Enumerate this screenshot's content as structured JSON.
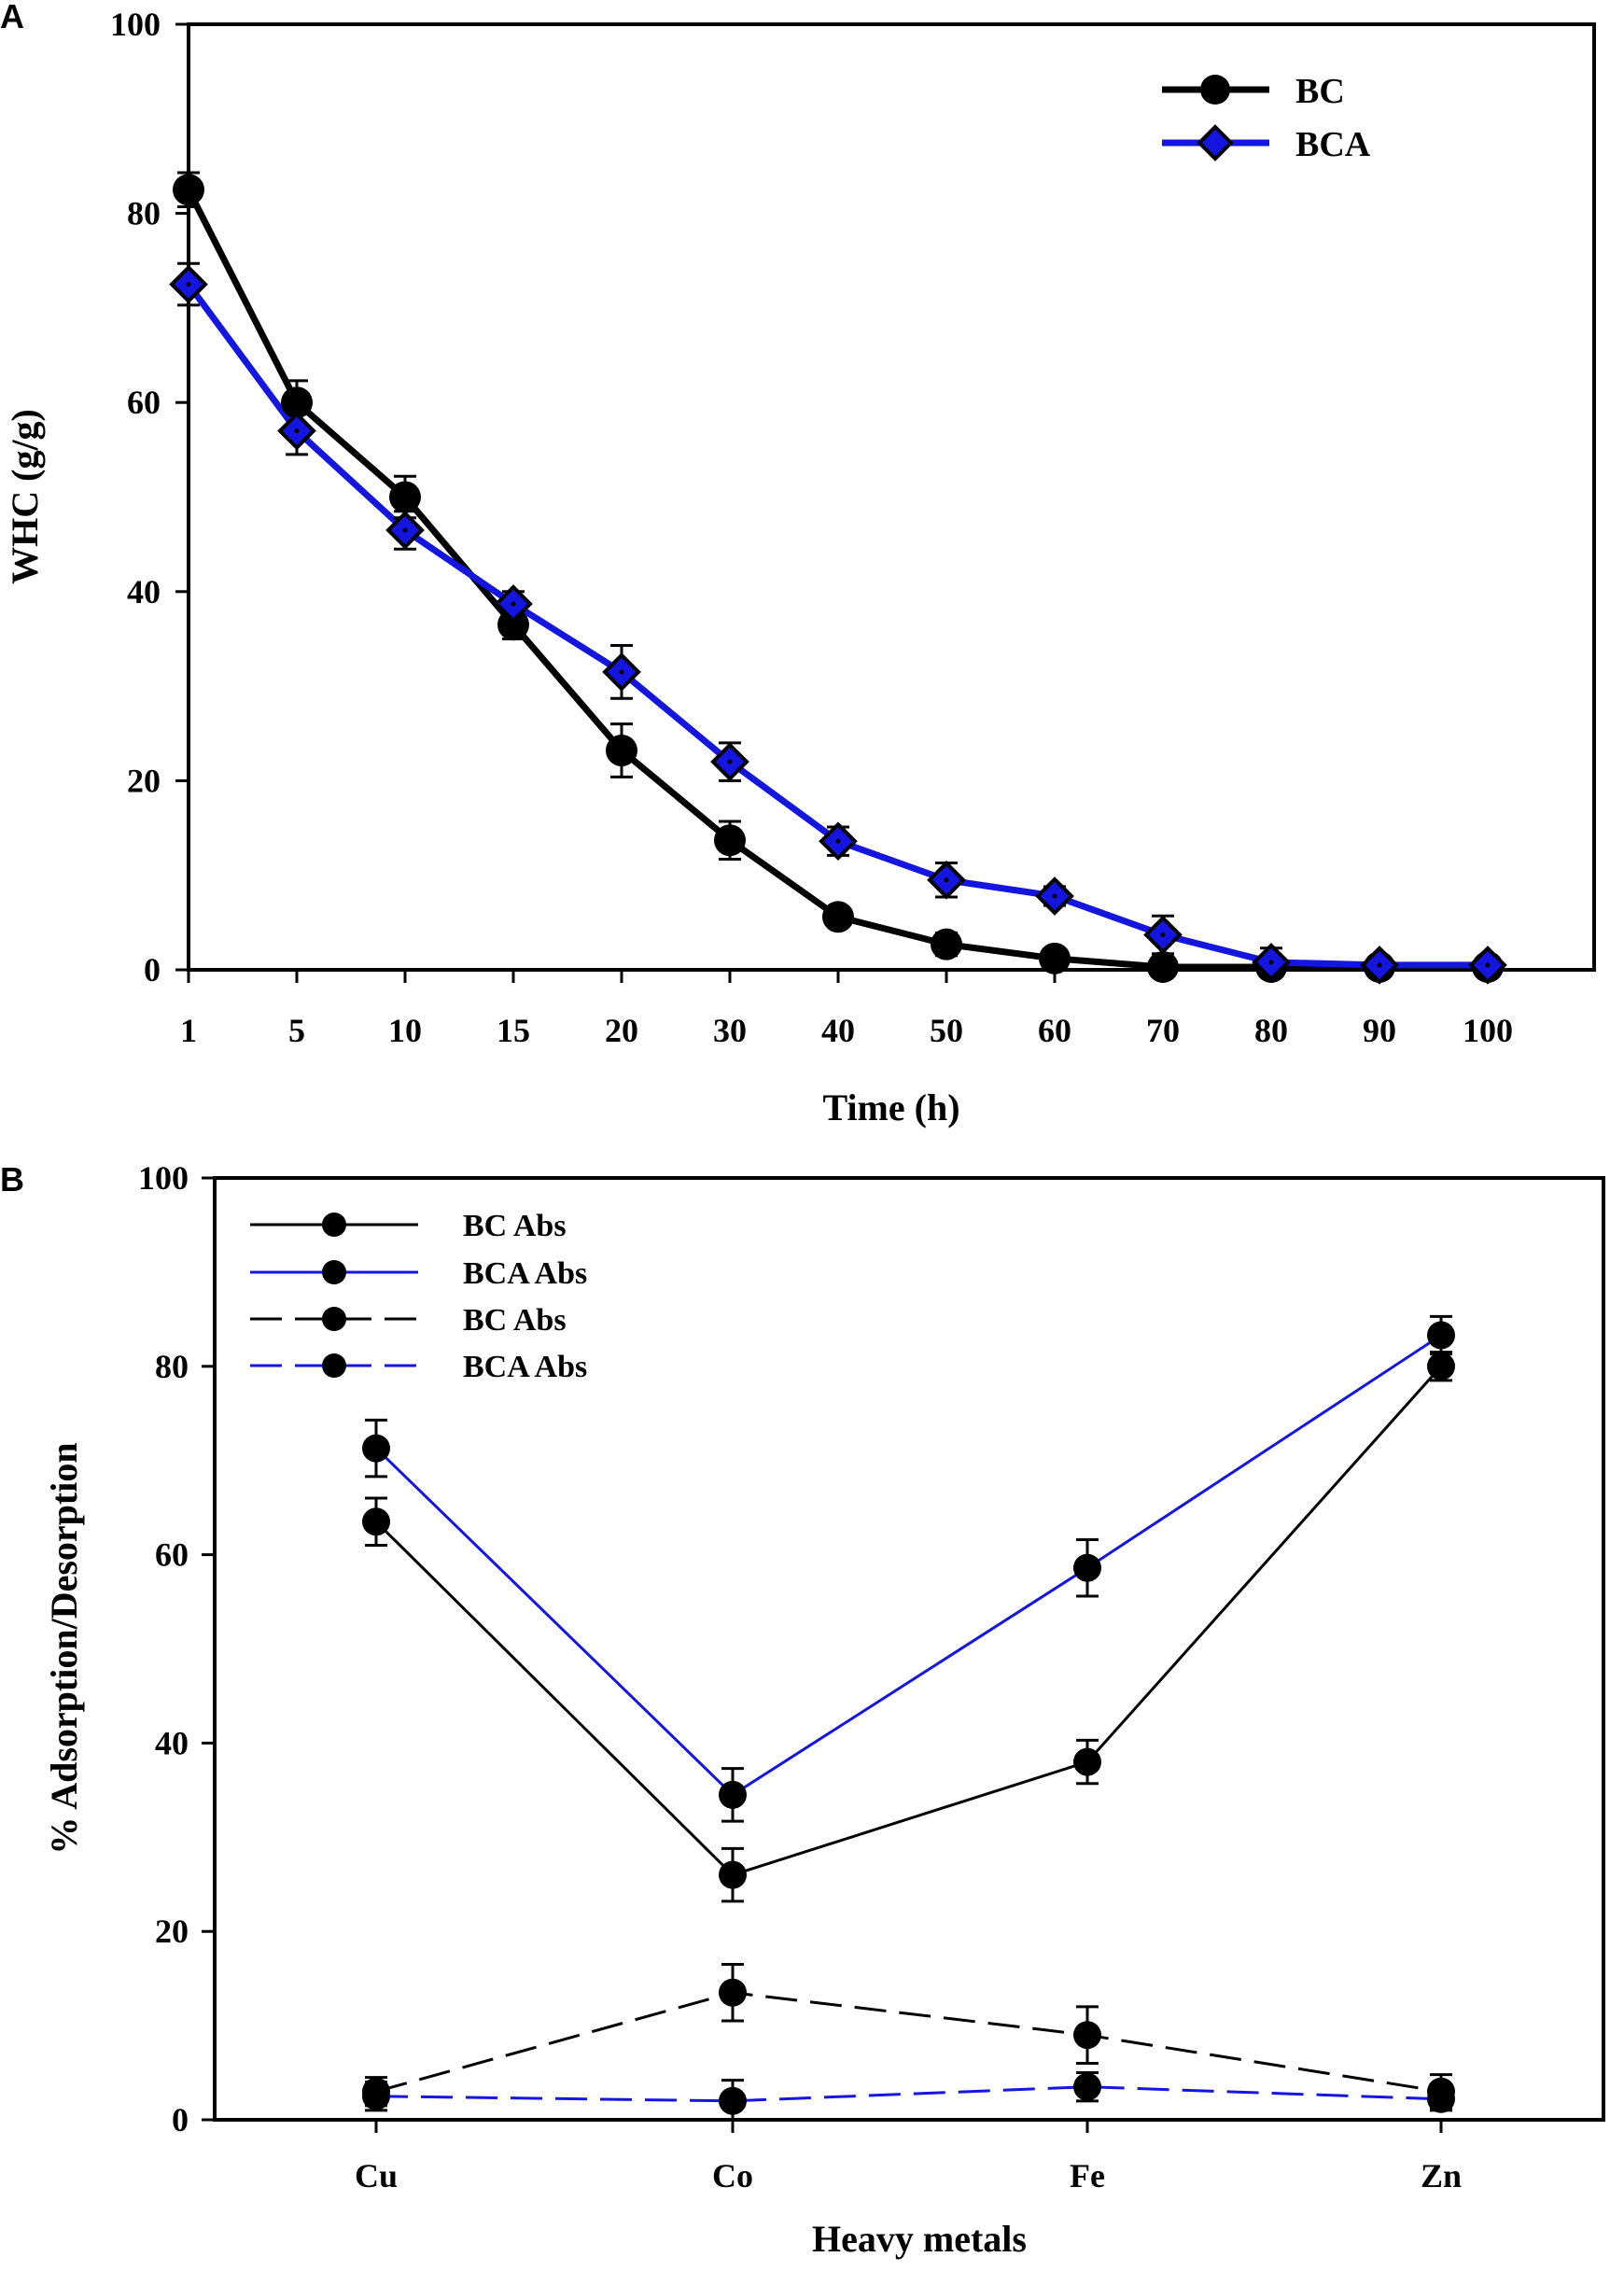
{
  "chart_data": [
    {
      "panel": "A",
      "type": "line",
      "xlabel": "Time (h)",
      "ylabel": "WHC (g/g)",
      "categories": [
        "1",
        "5",
        "10",
        "15",
        "20",
        "30",
        "40",
        "50",
        "60",
        "70",
        "80",
        "90",
        "100"
      ],
      "ylim": [
        0,
        100
      ],
      "yticks": [
        "0",
        "20",
        "40",
        "60",
        "80",
        "100"
      ],
      "series": [
        {
          "name": "BC",
          "color": "#000000",
          "marker": "circle",
          "values": [
            82.5,
            60,
            50,
            36.5,
            23.2,
            13.7,
            5.6,
            2.7,
            1.2,
            0.3,
            0.3,
            0.3,
            0.3
          ],
          "errors": [
            1.8,
            2.3,
            2.2,
            1.5,
            2.8,
            2.0,
            1.0,
            1.2,
            0.8,
            0.3,
            0.3,
            0.3,
            0.3
          ]
        },
        {
          "name": "BCA",
          "color": "#1515e0",
          "marker": "diamond",
          "values": [
            72.5,
            57,
            46.5,
            38.7,
            31.5,
            22,
            13.6,
            9.5,
            7.8,
            3.7,
            0.8,
            0.5,
            0.5
          ],
          "errors": [
            2.2,
            2.5,
            2.0,
            1.3,
            2.8,
            2.0,
            1.5,
            1.8,
            1.0,
            2.0,
            1.5,
            0.5,
            0.5
          ]
        }
      ]
    },
    {
      "panel": "B",
      "type": "line",
      "xlabel": "Heavy metals",
      "ylabel": "% Adsorption/Desorption",
      "categories": [
        "Cu",
        "Co",
        "Fe",
        "Zn"
      ],
      "ylim": [
        0,
        100
      ],
      "yticks": [
        "0",
        "20",
        "40",
        "60",
        "80",
        "100"
      ],
      "series": [
        {
          "name": "BC Abs",
          "color": "#000000",
          "dash": false,
          "values": [
            63.5,
            26,
            38,
            80
          ],
          "errors": [
            2.5,
            2.8,
            2.3,
            1.5
          ]
        },
        {
          "name": "BCA Abs",
          "color": "#1515e0",
          "dash": false,
          "values": [
            71.3,
            34.5,
            58.6,
            83.3
          ],
          "errors": [
            3.0,
            2.8,
            3.0,
            2.0
          ]
        },
        {
          "name": "BC Abs",
          "color": "#000000",
          "dash": true,
          "values": [
            3,
            13.5,
            9,
            3
          ],
          "errors": [
            1.5,
            3.0,
            3.0,
            1.8
          ]
        },
        {
          "name": "BCA Abs",
          "color": "#1515e0",
          "dash": true,
          "values": [
            2.5,
            2,
            3.5,
            2.2
          ],
          "errors": [
            1.5,
            2.2,
            1.5,
            1.2
          ]
        }
      ]
    }
  ]
}
